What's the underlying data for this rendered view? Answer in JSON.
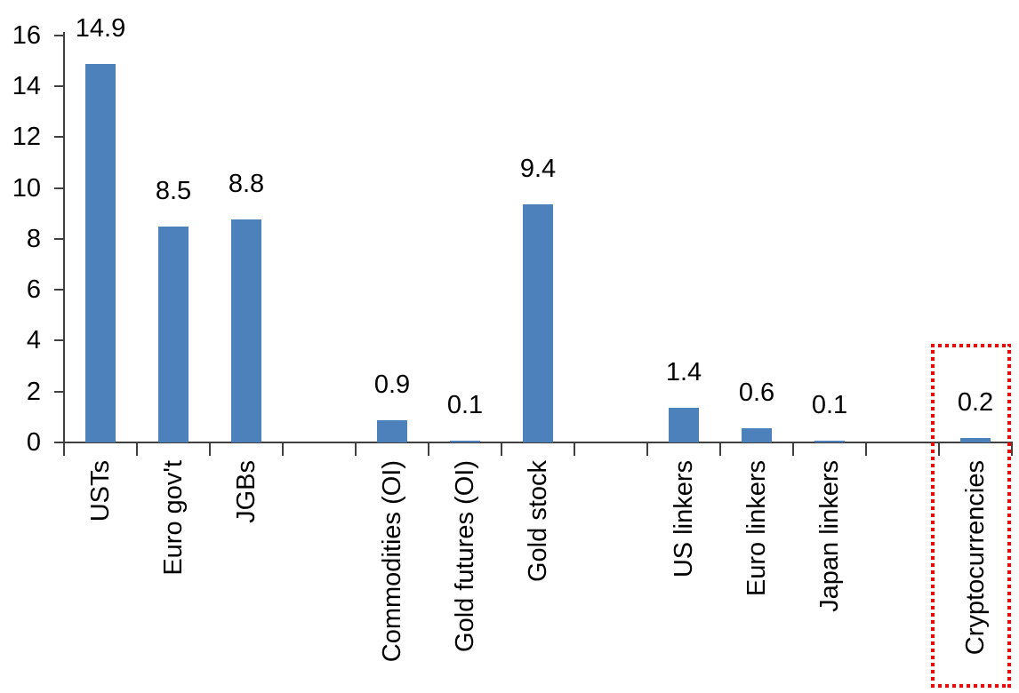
{
  "chart_data": {
    "type": "bar",
    "title": "",
    "xlabel": "",
    "ylabel": "",
    "ylim": [
      0,
      16
    ],
    "ytick_step": 2,
    "ytick_labels": [
      "0",
      "2",
      "4",
      "6",
      "8",
      "10",
      "12",
      "14",
      "16"
    ],
    "grid": false,
    "legend": false,
    "bar_color": "#4D81BC",
    "axis_color": "#404040",
    "text_color": "#000000",
    "highlight_color": "#FF0000",
    "n_slots": 13,
    "categories": [
      "USTs",
      "Euro gov't",
      "JGBs",
      "Commodities (OI)",
      "Gold futures (OI)",
      "Gold stock",
      "US linkers",
      "Euro linkers",
      "Japan linkers",
      "Cryptocurrencies"
    ],
    "values": [
      14.9,
      8.5,
      8.8,
      0.9,
      0.1,
      9.4,
      1.4,
      0.6,
      0.1,
      0.2
    ],
    "series": [
      {
        "label": "USTs",
        "value": 14.9,
        "value_label": "14.9",
        "slot": 0,
        "highlighted": false
      },
      {
        "label": "Euro gov't",
        "value": 8.5,
        "value_label": "8.5",
        "slot": 1,
        "highlighted": false
      },
      {
        "label": "JGBs",
        "value": 8.8,
        "value_label": "8.8",
        "slot": 2,
        "highlighted": false
      },
      {
        "label": "Commodities (OI)",
        "value": 0.9,
        "value_label": "0.9",
        "slot": 4,
        "highlighted": false
      },
      {
        "label": "Gold futures (OI)",
        "value": 0.1,
        "value_label": "0.1",
        "slot": 5,
        "highlighted": false
      },
      {
        "label": "Gold stock",
        "value": 9.4,
        "value_label": "9.4",
        "slot": 6,
        "highlighted": false
      },
      {
        "label": "US linkers",
        "value": 1.4,
        "value_label": "1.4",
        "slot": 8,
        "highlighted": false
      },
      {
        "label": "Euro linkers",
        "value": 0.6,
        "value_label": "0.6",
        "slot": 9,
        "highlighted": false
      },
      {
        "label": "Japan linkers",
        "value": 0.1,
        "value_label": "0.1",
        "slot": 10,
        "highlighted": false
      },
      {
        "label": "Cryptocurrencies",
        "value": 0.2,
        "value_label": "0.2",
        "slot": 12,
        "highlighted": true
      }
    ],
    "annotations": [
      {
        "type": "box",
        "target": "Cryptocurrencies",
        "style": "dotted",
        "color": "#FF0000"
      }
    ]
  }
}
